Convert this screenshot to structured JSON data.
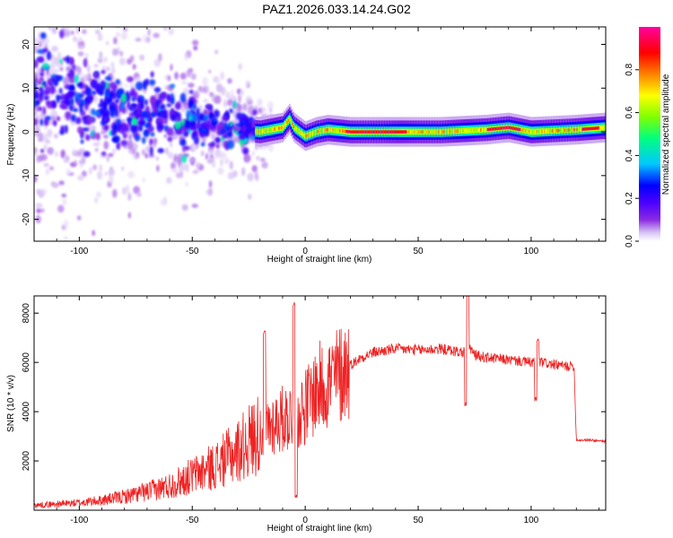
{
  "figure": {
    "title": "PAZ1.2026.033.14.24.G02"
  },
  "colors": {
    "background": "#ffffff",
    "axes": "#000000",
    "snr_line": "#ee2222"
  },
  "chart_data": [
    {
      "type": "heatmap",
      "name": "spectrogram",
      "xlabel": "Height of straight line (km)",
      "ylabel": "Frequency (Hz)",
      "xlim": [
        -120,
        133
      ],
      "ylim": [
        -25,
        24
      ],
      "xticks": [
        -100,
        -50,
        0,
        50,
        100
      ],
      "yticks": [
        -20,
        -10,
        0,
        10,
        20
      ],
      "colorbar": {
        "label": "Normalized spectral amplitude",
        "range": [
          0.0,
          1.0
        ],
        "ticks": [
          0.0,
          0.2,
          0.4,
          0.6,
          0.8
        ],
        "tick_labels": [
          "0.0",
          "0.2",
          "0.4",
          "0.6",
          "0.8"
        ],
        "colormap": [
          "#ffffff",
          "#d8c4f4",
          "#8a2be2",
          "#4b00ff",
          "#0000ff",
          "#00c8ff",
          "#00ff80",
          "#80ff00",
          "#ffff00",
          "#ff8000",
          "#ff0000",
          "#ff00a0"
        ]
      },
      "ridge": {
        "description_points_x": [
          -120,
          -100,
          -80,
          -60,
          -50,
          -40,
          -30,
          -20,
          -10,
          -7,
          -5,
          0,
          5,
          10,
          20,
          40,
          60,
          80,
          90,
          100,
          120,
          133
        ],
        "description_points_y": [
          9,
          7,
          5,
          3,
          2,
          1,
          0.5,
          0,
          1,
          3,
          1,
          -1,
          0,
          0.5,
          0,
          0,
          0,
          0.5,
          1,
          0,
          0.5,
          1
        ]
      }
    },
    {
      "type": "line",
      "name": "snr",
      "xlabel": "Height of straight line (km)",
      "ylabel": "SNR (10 * v/v)",
      "xlim": [
        -120,
        133
      ],
      "ylim": [
        0,
        8700
      ],
      "xticks": [
        -100,
        -50,
        0,
        50,
        100
      ],
      "yticks": [
        2000,
        4000,
        6000,
        8000
      ],
      "series": [
        {
          "name": "SNR",
          "x_envelope": [
            -120,
            -110,
            -100,
            -90,
            -80,
            -70,
            -60,
            -50,
            -40,
            -30,
            -25,
            -20,
            -15,
            -10,
            -5,
            0,
            5,
            10,
            15,
            20,
            25,
            30,
            40,
            50,
            60,
            70,
            72,
            75,
            80,
            90,
            100,
            105,
            110,
            115,
            119,
            120,
            125,
            133
          ],
          "y_envelope": [
            200,
            250,
            300,
            400,
            550,
            750,
            1000,
            1400,
            1800,
            2400,
            2800,
            3200,
            3500,
            3700,
            3900,
            4200,
            4900,
            5200,
            5500,
            5900,
            6200,
            6400,
            6550,
            6500,
            6550,
            6400,
            6700,
            6300,
            6200,
            6100,
            6000,
            6000,
            5900,
            5850,
            5850,
            2850,
            2850,
            2800
          ],
          "spikes": [
            {
              "x": -18,
              "y": 7200
            },
            {
              "x": -5,
              "y": 8400
            },
            {
              "x": -4,
              "y": 600
            },
            {
              "x": 72,
              "y": 8700
            },
            {
              "x": 71,
              "y": 4300
            },
            {
              "x": 103,
              "y": 6900
            },
            {
              "x": 102,
              "y": 4500
            }
          ]
        }
      ]
    }
  ]
}
